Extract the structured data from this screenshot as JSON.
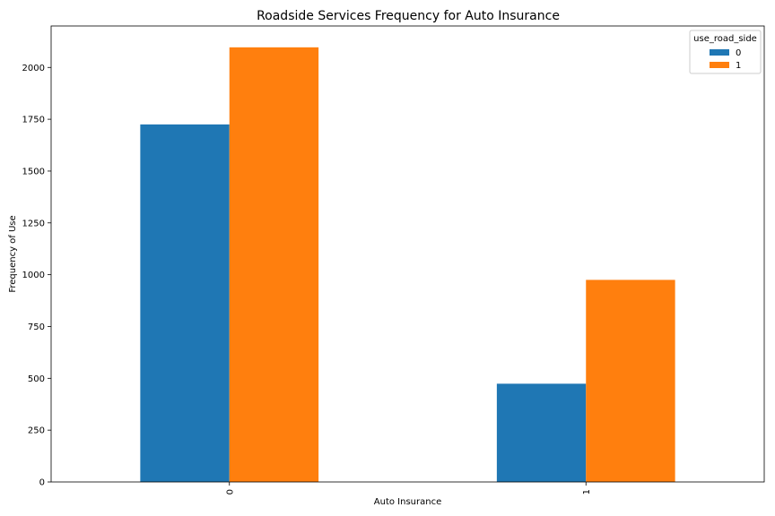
{
  "chart_data": {
    "type": "bar",
    "title": "Roadside Services Frequency for Auto Insurance",
    "xlabel": "Auto Insurance",
    "ylabel": "Frequency of Use",
    "categories": [
      "0",
      "1"
    ],
    "series": [
      {
        "name": "0",
        "values": [
          1725,
          474
        ],
        "color": "#1f77b4"
      },
      {
        "name": "1",
        "values": [
          2097,
          975
        ],
        "color": "#ff7f0e"
      }
    ],
    "ylim": [
      0,
      2200
    ],
    "yticks": [
      0,
      250,
      500,
      750,
      1000,
      1250,
      1500,
      1750,
      2000
    ],
    "legend": {
      "title": "use_road_side",
      "position": "top-right"
    },
    "grid": false
  }
}
